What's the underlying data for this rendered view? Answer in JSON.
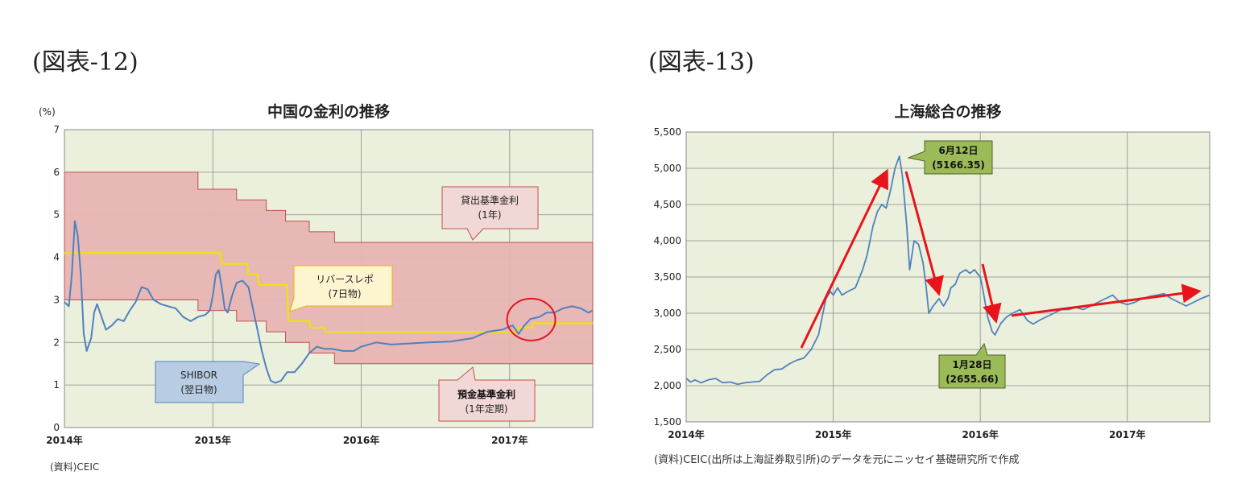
{
  "figures": {
    "left_label": "(図表-12)",
    "right_label": "(図表-13)"
  },
  "chart_data": [
    {
      "type": "line",
      "title": "中国の金利の推移",
      "unit_label": "(%)",
      "ylim": [
        0,
        7
      ],
      "yticks": [
        "0",
        "1",
        "2",
        "3",
        "4",
        "5",
        "6",
        "7"
      ],
      "xlim": [
        2014.0,
        2017.56
      ],
      "xticks": [
        {
          "x": 2014.0,
          "label": "2014年"
        },
        {
          "x": 2015.0,
          "label": "2015年"
        },
        {
          "x": 2016.0,
          "label": "2016年"
        },
        {
          "x": 2017.0,
          "label": "2017年"
        }
      ],
      "grid": true,
      "source": "(資料)CEIC",
      "bands": {
        "lending_rate_steps": [
          [
            2014.0,
            6.0
          ],
          [
            2014.9,
            5.6
          ],
          [
            2015.16,
            5.35
          ],
          [
            2015.36,
            5.1
          ],
          [
            2015.49,
            4.85
          ],
          [
            2015.65,
            4.6
          ],
          [
            2015.82,
            4.35
          ],
          [
            2017.56,
            4.35
          ]
        ],
        "deposit_rate_steps": [
          [
            2014.0,
            3.0
          ],
          [
            2014.9,
            2.75
          ],
          [
            2015.16,
            2.5
          ],
          [
            2015.36,
            2.25
          ],
          [
            2015.49,
            2.0
          ],
          [
            2015.65,
            1.75
          ],
          [
            2015.82,
            1.5
          ],
          [
            2017.56,
            1.5
          ]
        ]
      },
      "series": [
        {
          "color": "#4f81bd",
          "values": [
            [
              2014.0,
              2.95
            ],
            [
              2014.03,
              2.85
            ],
            [
              2014.05,
              3.6
            ],
            [
              2014.07,
              4.85
            ],
            [
              2014.09,
              4.5
            ],
            [
              2014.11,
              3.6
            ],
            [
              2014.13,
              2.2
            ],
            [
              2014.15,
              1.8
            ],
            [
              2014.18,
              2.1
            ],
            [
              2014.2,
              2.7
            ],
            [
              2014.22,
              2.9
            ],
            [
              2014.25,
              2.6
            ],
            [
              2014.28,
              2.3
            ],
            [
              2014.32,
              2.4
            ],
            [
              2014.36,
              2.55
            ],
            [
              2014.4,
              2.5
            ],
            [
              2014.44,
              2.75
            ],
            [
              2014.48,
              2.95
            ],
            [
              2014.52,
              3.3
            ],
            [
              2014.56,
              3.25
            ],
            [
              2014.6,
              3.0
            ],
            [
              2014.65,
              2.9
            ],
            [
              2014.7,
              2.85
            ],
            [
              2014.75,
              2.8
            ],
            [
              2014.8,
              2.6
            ],
            [
              2014.85,
              2.5
            ],
            [
              2014.9,
              2.6
            ],
            [
              2014.95,
              2.65
            ],
            [
              2014.98,
              2.75
            ],
            [
              2015.0,
              3.1
            ],
            [
              2015.02,
              3.6
            ],
            [
              2015.04,
              3.7
            ],
            [
              2015.06,
              3.3
            ],
            [
              2015.08,
              2.8
            ],
            [
              2015.1,
              2.7
            ],
            [
              2015.13,
              3.1
            ],
            [
              2015.16,
              3.4
            ],
            [
              2015.2,
              3.45
            ],
            [
              2015.24,
              3.3
            ],
            [
              2015.27,
              2.8
            ],
            [
              2015.3,
              2.3
            ],
            [
              2015.33,
              1.8
            ],
            [
              2015.36,
              1.4
            ],
            [
              2015.39,
              1.1
            ],
            [
              2015.42,
              1.05
            ],
            [
              2015.46,
              1.1
            ],
            [
              2015.5,
              1.3
            ],
            [
              2015.55,
              1.3
            ],
            [
              2015.6,
              1.5
            ],
            [
              2015.65,
              1.75
            ],
            [
              2015.7,
              1.9
            ],
            [
              2015.75,
              1.85
            ],
            [
              2015.8,
              1.85
            ],
            [
              2015.88,
              1.8
            ],
            [
              2015.95,
              1.8
            ],
            [
              2016.0,
              1.9
            ],
            [
              2016.05,
              1.95
            ],
            [
              2016.1,
              2.0
            ],
            [
              2016.2,
              1.95
            ],
            [
              2016.3,
              1.97
            ],
            [
              2016.45,
              2.0
            ],
            [
              2016.6,
              2.02
            ],
            [
              2016.75,
              2.1
            ],
            [
              2016.85,
              2.25
            ],
            [
              2016.95,
              2.3
            ],
            [
              2017.02,
              2.4
            ],
            [
              2017.06,
              2.2
            ],
            [
              2017.1,
              2.4
            ],
            [
              2017.14,
              2.55
            ],
            [
              2017.2,
              2.6
            ],
            [
              2017.25,
              2.7
            ],
            [
              2017.3,
              2.7
            ],
            [
              2017.36,
              2.8
            ],
            [
              2017.42,
              2.85
            ],
            [
              2017.48,
              2.8
            ],
            [
              2017.53,
              2.7
            ],
            [
              2017.56,
              2.75
            ]
          ]
        },
        {
          "color": "#f2e300",
          "values": [
            [
              2014.0,
              4.1
            ],
            [
              2015.05,
              4.1
            ],
            [
              2015.06,
              3.85
            ],
            [
              2015.23,
              3.85
            ],
            [
              2015.24,
              3.6
            ],
            [
              2015.3,
              3.6
            ],
            [
              2015.31,
              3.35
            ],
            [
              2015.5,
              3.35
            ],
            [
              2015.51,
              2.5
            ],
            [
              2015.6,
              2.5
            ],
            [
              2015.65,
              2.5
            ],
            [
              2015.66,
              2.35
            ],
            [
              2015.75,
              2.35
            ],
            [
              2015.76,
              2.25
            ],
            [
              2016.0,
              2.25
            ],
            [
              2017.05,
              2.25
            ],
            [
              2017.06,
              2.35
            ],
            [
              2017.15,
              2.35
            ],
            [
              2017.16,
              2.45
            ],
            [
              2017.56,
              2.45
            ]
          ]
        }
      ],
      "annotations": {
        "lending_callout": {
          "line1": "貸出基準金利",
          "line2": "(1年)"
        },
        "deposit_callout": {
          "line1": "預金基準金利",
          "line2": "(1年定期)"
        },
        "repo_callout": {
          "line1": "リバースレポ",
          "line2": "(7日物)"
        },
        "shibor_callout": {
          "line1": "SHIBOR",
          "line2": "(翌日物)"
        },
        "circle": {
          "x": 2017.08,
          "y": 2.5
        }
      }
    },
    {
      "type": "line",
      "title": "上海総合の推移",
      "ylim": [
        1500,
        5500
      ],
      "yticks": [
        "1,500",
        "2,000",
        "2,500",
        "3,000",
        "3,500",
        "4,000",
        "4,500",
        "5,000",
        "5,500"
      ],
      "xlim": [
        2014.0,
        2017.56
      ],
      "xticks": [
        {
          "x": 2014.0,
          "label": "2014年"
        },
        {
          "x": 2015.0,
          "label": "2015年"
        },
        {
          "x": 2016.0,
          "label": "2016年"
        },
        {
          "x": 2017.0,
          "label": "2017年"
        }
      ],
      "grid": true,
      "source": "(資料)CEIC(出所は上海証券取引所)のデータを元にニッセイ基礎研究所で作成",
      "series": [
        {
          "color": "#4f81bd",
          "values": [
            [
              2014.0,
              2100
            ],
            [
              2014.03,
              2050
            ],
            [
              2014.06,
              2080
            ],
            [
              2014.1,
              2040
            ],
            [
              2014.15,
              2080
            ],
            [
              2014.2,
              2100
            ],
            [
              2014.25,
              2040
            ],
            [
              2014.3,
              2050
            ],
            [
              2014.35,
              2020
            ],
            [
              2014.4,
              2040
            ],
            [
              2014.45,
              2050
            ],
            [
              2014.5,
              2060
            ],
            [
              2014.55,
              2150
            ],
            [
              2014.6,
              2220
            ],
            [
              2014.65,
              2230
            ],
            [
              2014.7,
              2300
            ],
            [
              2014.75,
              2350
            ],
            [
              2014.8,
              2380
            ],
            [
              2014.85,
              2500
            ],
            [
              2014.9,
              2700
            ],
            [
              2014.93,
              3000
            ],
            [
              2014.95,
              3200
            ],
            [
              2014.98,
              3300
            ],
            [
              2015.0,
              3250
            ],
            [
              2015.03,
              3350
            ],
            [
              2015.06,
              3250
            ],
            [
              2015.1,
              3300
            ],
            [
              2015.15,
              3350
            ],
            [
              2015.2,
              3600
            ],
            [
              2015.23,
              3800
            ],
            [
              2015.27,
              4200
            ],
            [
              2015.3,
              4400
            ],
            [
              2015.33,
              4500
            ],
            [
              2015.36,
              4450
            ],
            [
              2015.39,
              4700
            ],
            [
              2015.42,
              5000
            ],
            [
              2015.45,
              5166
            ],
            [
              2015.47,
              4900
            ],
            [
              2015.5,
              4200
            ],
            [
              2015.52,
              3600
            ],
            [
              2015.55,
              4000
            ],
            [
              2015.58,
              3950
            ],
            [
              2015.61,
              3700
            ],
            [
              2015.63,
              3400
            ],
            [
              2015.65,
              3000
            ],
            [
              2015.68,
              3100
            ],
            [
              2015.72,
              3200
            ],
            [
              2015.75,
              3100
            ],
            [
              2015.78,
              3200
            ],
            [
              2015.8,
              3350
            ],
            [
              2015.83,
              3400
            ],
            [
              2015.86,
              3550
            ],
            [
              2015.9,
              3600
            ],
            [
              2015.93,
              3550
            ],
            [
              2015.96,
              3600
            ],
            [
              2016.0,
              3500
            ],
            [
              2016.02,
              3300
            ],
            [
              2016.05,
              2950
            ],
            [
              2016.08,
              2750
            ],
            [
              2016.1,
              2700
            ],
            [
              2016.14,
              2860
            ],
            [
              2016.18,
              2950
            ],
            [
              2016.22,
              3000
            ],
            [
              2016.27,
              3050
            ],
            [
              2016.32,
              2900
            ],
            [
              2016.36,
              2850
            ],
            [
              2016.4,
              2900
            ],
            [
              2016.45,
              2950
            ],
            [
              2016.5,
              3000
            ],
            [
              2016.55,
              3050
            ],
            [
              2016.6,
              3050
            ],
            [
              2016.65,
              3080
            ],
            [
              2016.7,
              3050
            ],
            [
              2016.75,
              3100
            ],
            [
              2016.8,
              3150
            ],
            [
              2016.85,
              3200
            ],
            [
              2016.9,
              3250
            ],
            [
              2016.95,
              3150
            ],
            [
              2017.0,
              3120
            ],
            [
              2017.05,
              3150
            ],
            [
              2017.1,
              3200
            ],
            [
              2017.15,
              3230
            ],
            [
              2017.2,
              3250
            ],
            [
              2017.25,
              3270
            ],
            [
              2017.3,
              3200
            ],
            [
              2017.35,
              3150
            ],
            [
              2017.4,
              3100
            ],
            [
              2017.45,
              3150
            ],
            [
              2017.5,
              3200
            ],
            [
              2017.56,
              3250
            ]
          ]
        }
      ],
      "annotations": {
        "peak_callout": {
          "line1": "6月12日",
          "line2": "(5166.35)"
        },
        "trough_callout": {
          "line1": "1月28日",
          "line2": "(2655.66)"
        }
      }
    }
  ]
}
